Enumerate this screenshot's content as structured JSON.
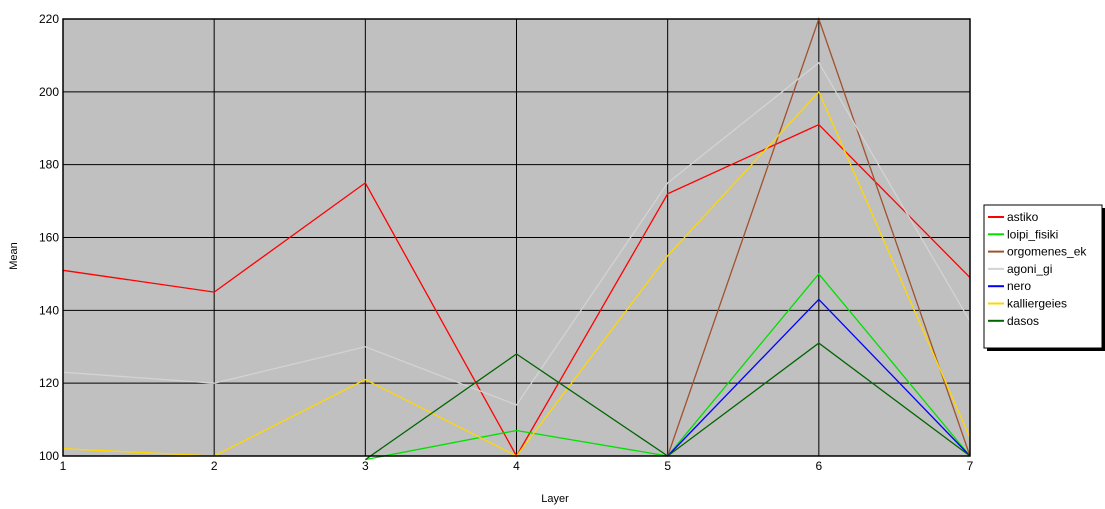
{
  "chart_data": {
    "type": "line",
    "title": "",
    "xlabel": "Layer",
    "ylabel": "Mean",
    "x": [
      1,
      2,
      3,
      4,
      5,
      6,
      7
    ],
    "xlim": [
      1,
      7
    ],
    "ylim": [
      100,
      220
    ],
    "x_ticks": [
      "1",
      "2",
      "3",
      "4",
      "5",
      "6",
      "7"
    ],
    "y_ticks": [
      "100",
      "120",
      "140",
      "160",
      "180",
      "200",
      "220"
    ],
    "grid": true,
    "legend_position": "right",
    "plot_background": "#c0c0c0",
    "series": [
      {
        "name": "astiko",
        "color": "#ff0000",
        "values": [
          151,
          145,
          175,
          100,
          172,
          191,
          149
        ]
      },
      {
        "name": "loipi_fisiki",
        "color": "#00e000",
        "values": [
          null,
          null,
          99,
          107,
          100,
          150,
          100
        ]
      },
      {
        "name": "orgomenes_ek",
        "color": "#a0522d",
        "values": [
          null,
          null,
          null,
          null,
          100,
          220,
          100
        ]
      },
      {
        "name": "agoni_gi",
        "color": "#d3d3d3",
        "values": [
          123,
          120,
          130,
          114,
          175,
          208,
          137
        ]
      },
      {
        "name": "nero",
        "color": "#0000ff",
        "values": [
          null,
          null,
          null,
          null,
          100,
          143,
          100
        ]
      },
      {
        "name": "kalliergeies",
        "color": "#ffd700",
        "values": [
          102,
          100,
          121,
          100,
          155,
          200,
          105
        ]
      },
      {
        "name": "dasos",
        "color": "#006400",
        "values": [
          null,
          null,
          99,
          128,
          100,
          131,
          100
        ]
      }
    ]
  }
}
